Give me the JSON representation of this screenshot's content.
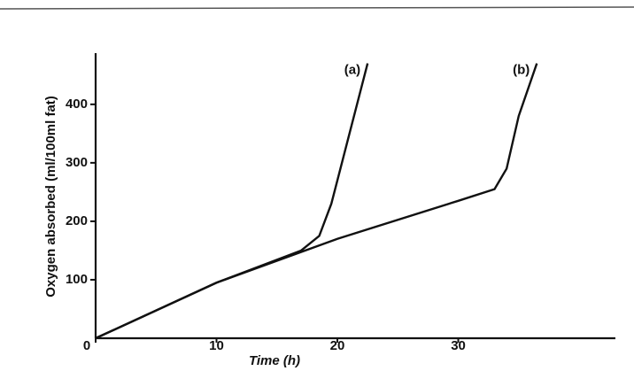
{
  "chart_data": {
    "type": "line",
    "x_label": "Time (h)",
    "y_label": "Oxygen absorbed (ml/100ml fat)",
    "xlim": [
      0,
      43
    ],
    "ylim": [
      0,
      480
    ],
    "xticks": [
      0,
      10,
      20,
      30
    ],
    "yticks": [
      100,
      200,
      300,
      400
    ],
    "series": [
      {
        "name": "(a)",
        "color": "#111111",
        "x": [
          0,
          10,
          17,
          18.5,
          19.5,
          21,
          22.5
        ],
        "values": [
          0,
          95,
          150,
          175,
          230,
          350,
          470
        ]
      },
      {
        "name": "(b)",
        "color": "#111111",
        "x": [
          0,
          10,
          20,
          30,
          33,
          34,
          35,
          36.5
        ],
        "values": [
          0,
          95,
          170,
          235,
          255,
          290,
          380,
          470
        ]
      }
    ]
  }
}
